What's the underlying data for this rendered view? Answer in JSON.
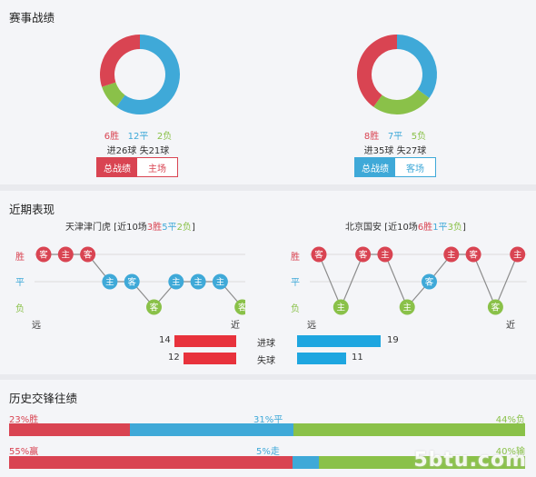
{
  "sections": {
    "record_title": "赛事战绩",
    "recent_title": "近期表现",
    "history_title": "历史交锋往绩"
  },
  "colors": {
    "win": "#d94452",
    "draw": "#3fa9d8",
    "loss": "#8ac149"
  },
  "record": {
    "left": {
      "wins": "6胜",
      "draws": "12平",
      "losses": "2负",
      "counts": [
        6,
        12,
        2
      ],
      "goals": "进26球 失21球",
      "tab_active": "总战绩",
      "tab_other": "主场"
    },
    "right": {
      "wins": "8胜",
      "draws": "7平",
      "losses": "5负",
      "counts": [
        8,
        7,
        5
      ],
      "goals": "进35球 失27球",
      "tab_active": "总战绩",
      "tab_other": "客场"
    }
  },
  "recent": {
    "left": {
      "team": "天津津门虎",
      "prefix": " [近10场",
      "wins": "3胜",
      "draws": "5平",
      "losses": "2负",
      "suffix": "]",
      "matches": [
        {
          "result": "W",
          "venue": "客"
        },
        {
          "result": "W",
          "venue": "主"
        },
        {
          "result": "W",
          "venue": "客"
        },
        {
          "result": "D",
          "venue": "主"
        },
        {
          "result": "D",
          "venue": "客"
        },
        {
          "result": "L",
          "venue": "客"
        },
        {
          "result": "D",
          "venue": "主"
        },
        {
          "result": "D",
          "venue": "主"
        },
        {
          "result": "D",
          "venue": "主"
        },
        {
          "result": "L",
          "venue": "客"
        }
      ]
    },
    "right": {
      "team": "北京国安",
      "prefix": " [近10场",
      "wins": "6胜",
      "draws": "1平",
      "losses": "3负",
      "suffix": "]",
      "matches": [
        {
          "result": "W",
          "venue": "客"
        },
        {
          "result": "L",
          "venue": "主"
        },
        {
          "result": "W",
          "venue": "客"
        },
        {
          "result": "W",
          "venue": "主"
        },
        {
          "result": "L",
          "venue": "主"
        },
        {
          "result": "D",
          "venue": "客"
        },
        {
          "result": "W",
          "venue": "主"
        },
        {
          "result": "W",
          "venue": "客"
        },
        {
          "result": "L",
          "venue": "客"
        },
        {
          "result": "W",
          "venue": "主"
        }
      ]
    },
    "axis": {
      "win": "胜",
      "draw": "平",
      "loss": "负",
      "far": "远",
      "near": "近"
    },
    "goals_for_label": "进球",
    "goals_against_label": "失球",
    "left_goals_for": "14",
    "left_goals_against": "12",
    "right_goals_for": "19",
    "right_goals_against": "11",
    "goals_for_values": [
      14,
      19
    ],
    "goals_against_values": [
      12,
      11
    ]
  },
  "history": {
    "row1": {
      "left": "23%胜",
      "mid": "31%平",
      "right": "44%负",
      "pct": [
        23,
        31,
        44
      ]
    },
    "row2": {
      "left": "55%赢",
      "mid": "5%走",
      "right": "40%输",
      "pct": [
        55,
        5,
        40
      ]
    }
  },
  "watermark": "5btu.com"
}
